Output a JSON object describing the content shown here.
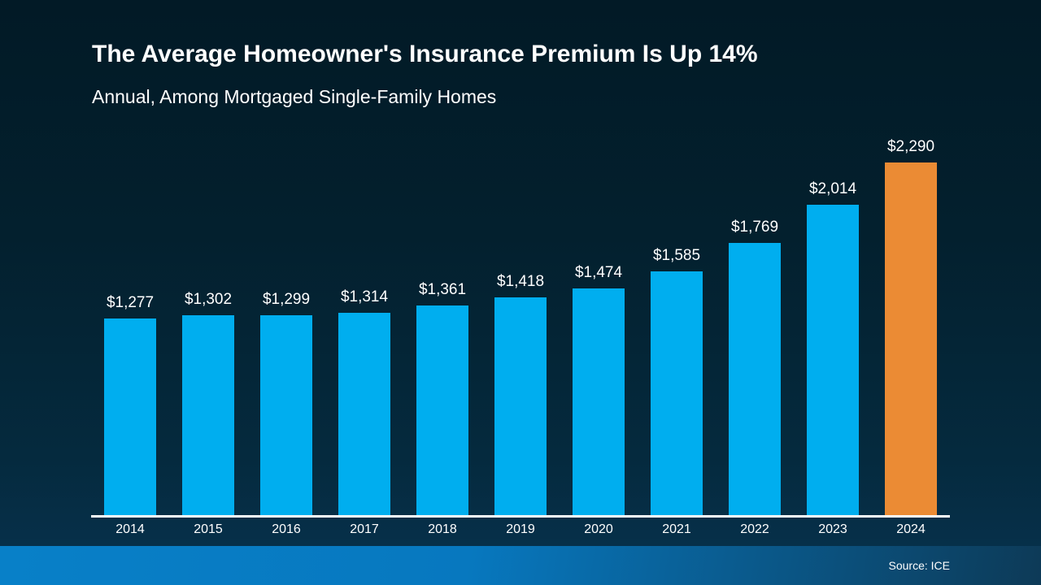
{
  "slide": {
    "title": "The Average Homeowner's Insurance Premium Is Up 14%",
    "subtitle": "Annual, Among Mortgaged Single-Family Homes",
    "source": "Source: ICE"
  },
  "colors": {
    "background_top": "#021A26",
    "background_bottom": "#06304A",
    "bar_blue": "#00AEEF",
    "bar_orange": "#EB8B34",
    "axis_line": "#FFFFFF",
    "footer_left": "#0880C8",
    "footer_right": "#0D3A57",
    "text": "#FFFFFF"
  },
  "chart_data": {
    "type": "bar",
    "title": "The Average Homeowner's Insurance Premium Is Up 14%",
    "subtitle": "Annual, Among Mortgaged Single-Family Homes",
    "categories": [
      "2014",
      "2015",
      "2016",
      "2017",
      "2018",
      "2019",
      "2020",
      "2021",
      "2022",
      "2023",
      "2024"
    ],
    "values": [
      1277,
      1302,
      1299,
      1314,
      1361,
      1418,
      1474,
      1585,
      1769,
      2014,
      2290
    ],
    "labels": [
      "$1,277",
      "$1,302",
      "$1,299",
      "$1,314",
      "$1,361",
      "$1,418",
      "$1,474",
      "$1,585",
      "$1,769",
      "$2,014",
      "$2,290"
    ],
    "xlabel": "",
    "ylabel": "",
    "ylim": [
      0,
      2290
    ],
    "grid": false,
    "legend": false,
    "value_labels_position": "above",
    "bar_color": "#00AEEF",
    "highlight_index": 10,
    "highlight_color": "#EB8B34",
    "source": "Source: ICE"
  }
}
